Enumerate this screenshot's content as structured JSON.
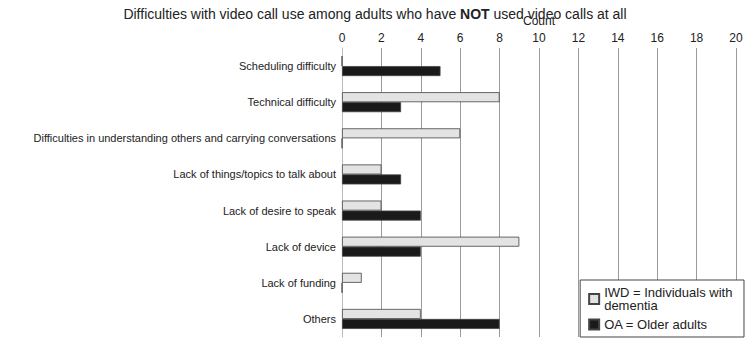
{
  "chart_data": {
    "type": "bar",
    "orientation": "horizontal",
    "title": "Difficulties with video call use among adults who have NOT used video calls at all",
    "xlabel": "Count",
    "categories": [
      "Scheduling difficulty",
      "Technical difficulty",
      "Difficulties in understanding others and carrying conversations",
      "Lack of things/topics to talk about",
      "Lack of desire to speak",
      "Lack of device",
      "Lack of funding",
      "Others"
    ],
    "series": [
      {
        "name": "IWD = Individuals with dementia",
        "color": "#e3e3e3",
        "values": [
          0,
          8,
          6,
          2,
          2,
          9,
          1,
          4
        ]
      },
      {
        "name": "OA = Older adults",
        "color": "#1a1a1a",
        "values": [
          5,
          3,
          0,
          3,
          4,
          4,
          0,
          8
        ]
      }
    ],
    "xlim": [
      0,
      20
    ],
    "xticks": [
      0,
      2,
      4,
      6,
      8,
      10,
      12,
      14,
      16,
      18,
      20
    ],
    "grid": true,
    "legend": "lower right"
  }
}
